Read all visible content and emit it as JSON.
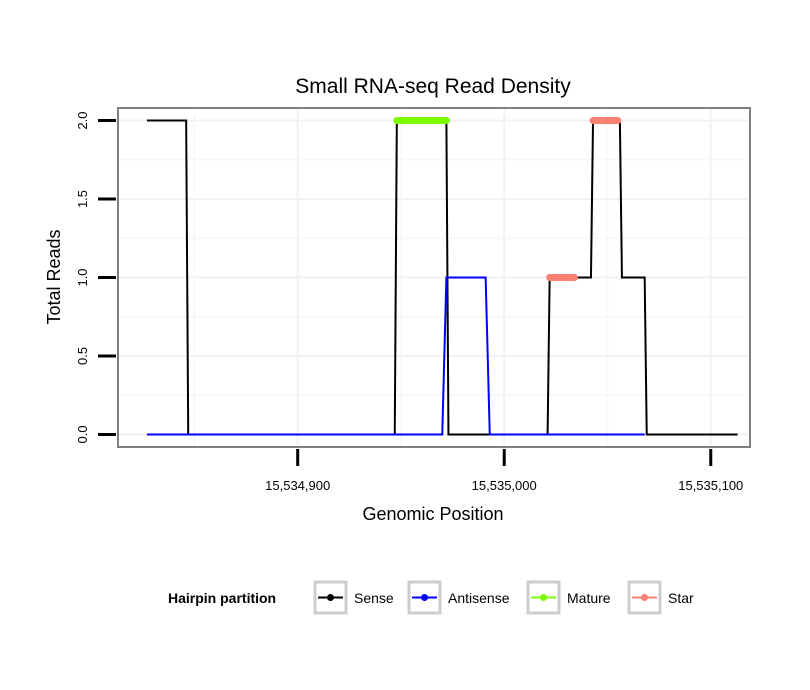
{
  "chart_data": {
    "type": "line",
    "title": "Small RNA-seq Read Density",
    "xlabel": "Genomic Position",
    "ylabel": "Total Reads",
    "xlim": [
      15534813,
      15535119
    ],
    "ylim": [
      -0.08,
      2.08
    ],
    "x_ticks": [
      {
        "value": 15534900,
        "label": "15,534,900"
      },
      {
        "value": 15535000,
        "label": "15,535,000"
      },
      {
        "value": 15535100,
        "label": "15,535,100"
      }
    ],
    "y_ticks": [
      {
        "value": 0.0,
        "label": "0.0"
      },
      {
        "value": 0.5,
        "label": "0.5"
      },
      {
        "value": 1.0,
        "label": "1.0"
      },
      {
        "value": 1.5,
        "label": "1.5"
      },
      {
        "value": 2.0,
        "label": "2.0"
      }
    ],
    "grid": true,
    "legend": {
      "title": "Hairpin partition",
      "position": "bottom",
      "entries": [
        {
          "name": "Sense",
          "color": "#000000"
        },
        {
          "name": "Antisense",
          "color": "#0000ff"
        },
        {
          "name": "Mature",
          "color": "#7cfc00"
        },
        {
          "name": "Star",
          "color": "#fa8072"
        }
      ]
    },
    "series": [
      {
        "name": "Sense",
        "color": "#000000",
        "x": [
          15534827,
          15534846,
          15534847,
          15534947,
          15534948,
          15534972,
          15534973,
          15535021,
          15535022,
          15535042,
          15535043,
          15535056,
          15535057,
          15535068,
          15535069,
          15535113
        ],
        "y": [
          2,
          2,
          0,
          0,
          2,
          2,
          0,
          0,
          1,
          1,
          2,
          2,
          1,
          1,
          0,
          0
        ]
      },
      {
        "name": "Antisense",
        "color": "#0000ff",
        "x": [
          15534827,
          15534970,
          15534972,
          15534991,
          15534993,
          15535068
        ],
        "y": [
          0,
          0,
          1,
          1,
          0,
          0
        ]
      },
      {
        "name": "Mature",
        "color": "#7cfc00",
        "x": [
          15534948,
          15534972
        ],
        "y": [
          2,
          2
        ]
      },
      {
        "name": "Star",
        "color": "#fa8072",
        "segments": [
          {
            "x": [
              15535022,
              15535034
            ],
            "y": [
              1,
              1
            ]
          },
          {
            "x": [
              15535043,
              15535055
            ],
            "y": [
              2,
              2
            ]
          }
        ]
      }
    ]
  }
}
